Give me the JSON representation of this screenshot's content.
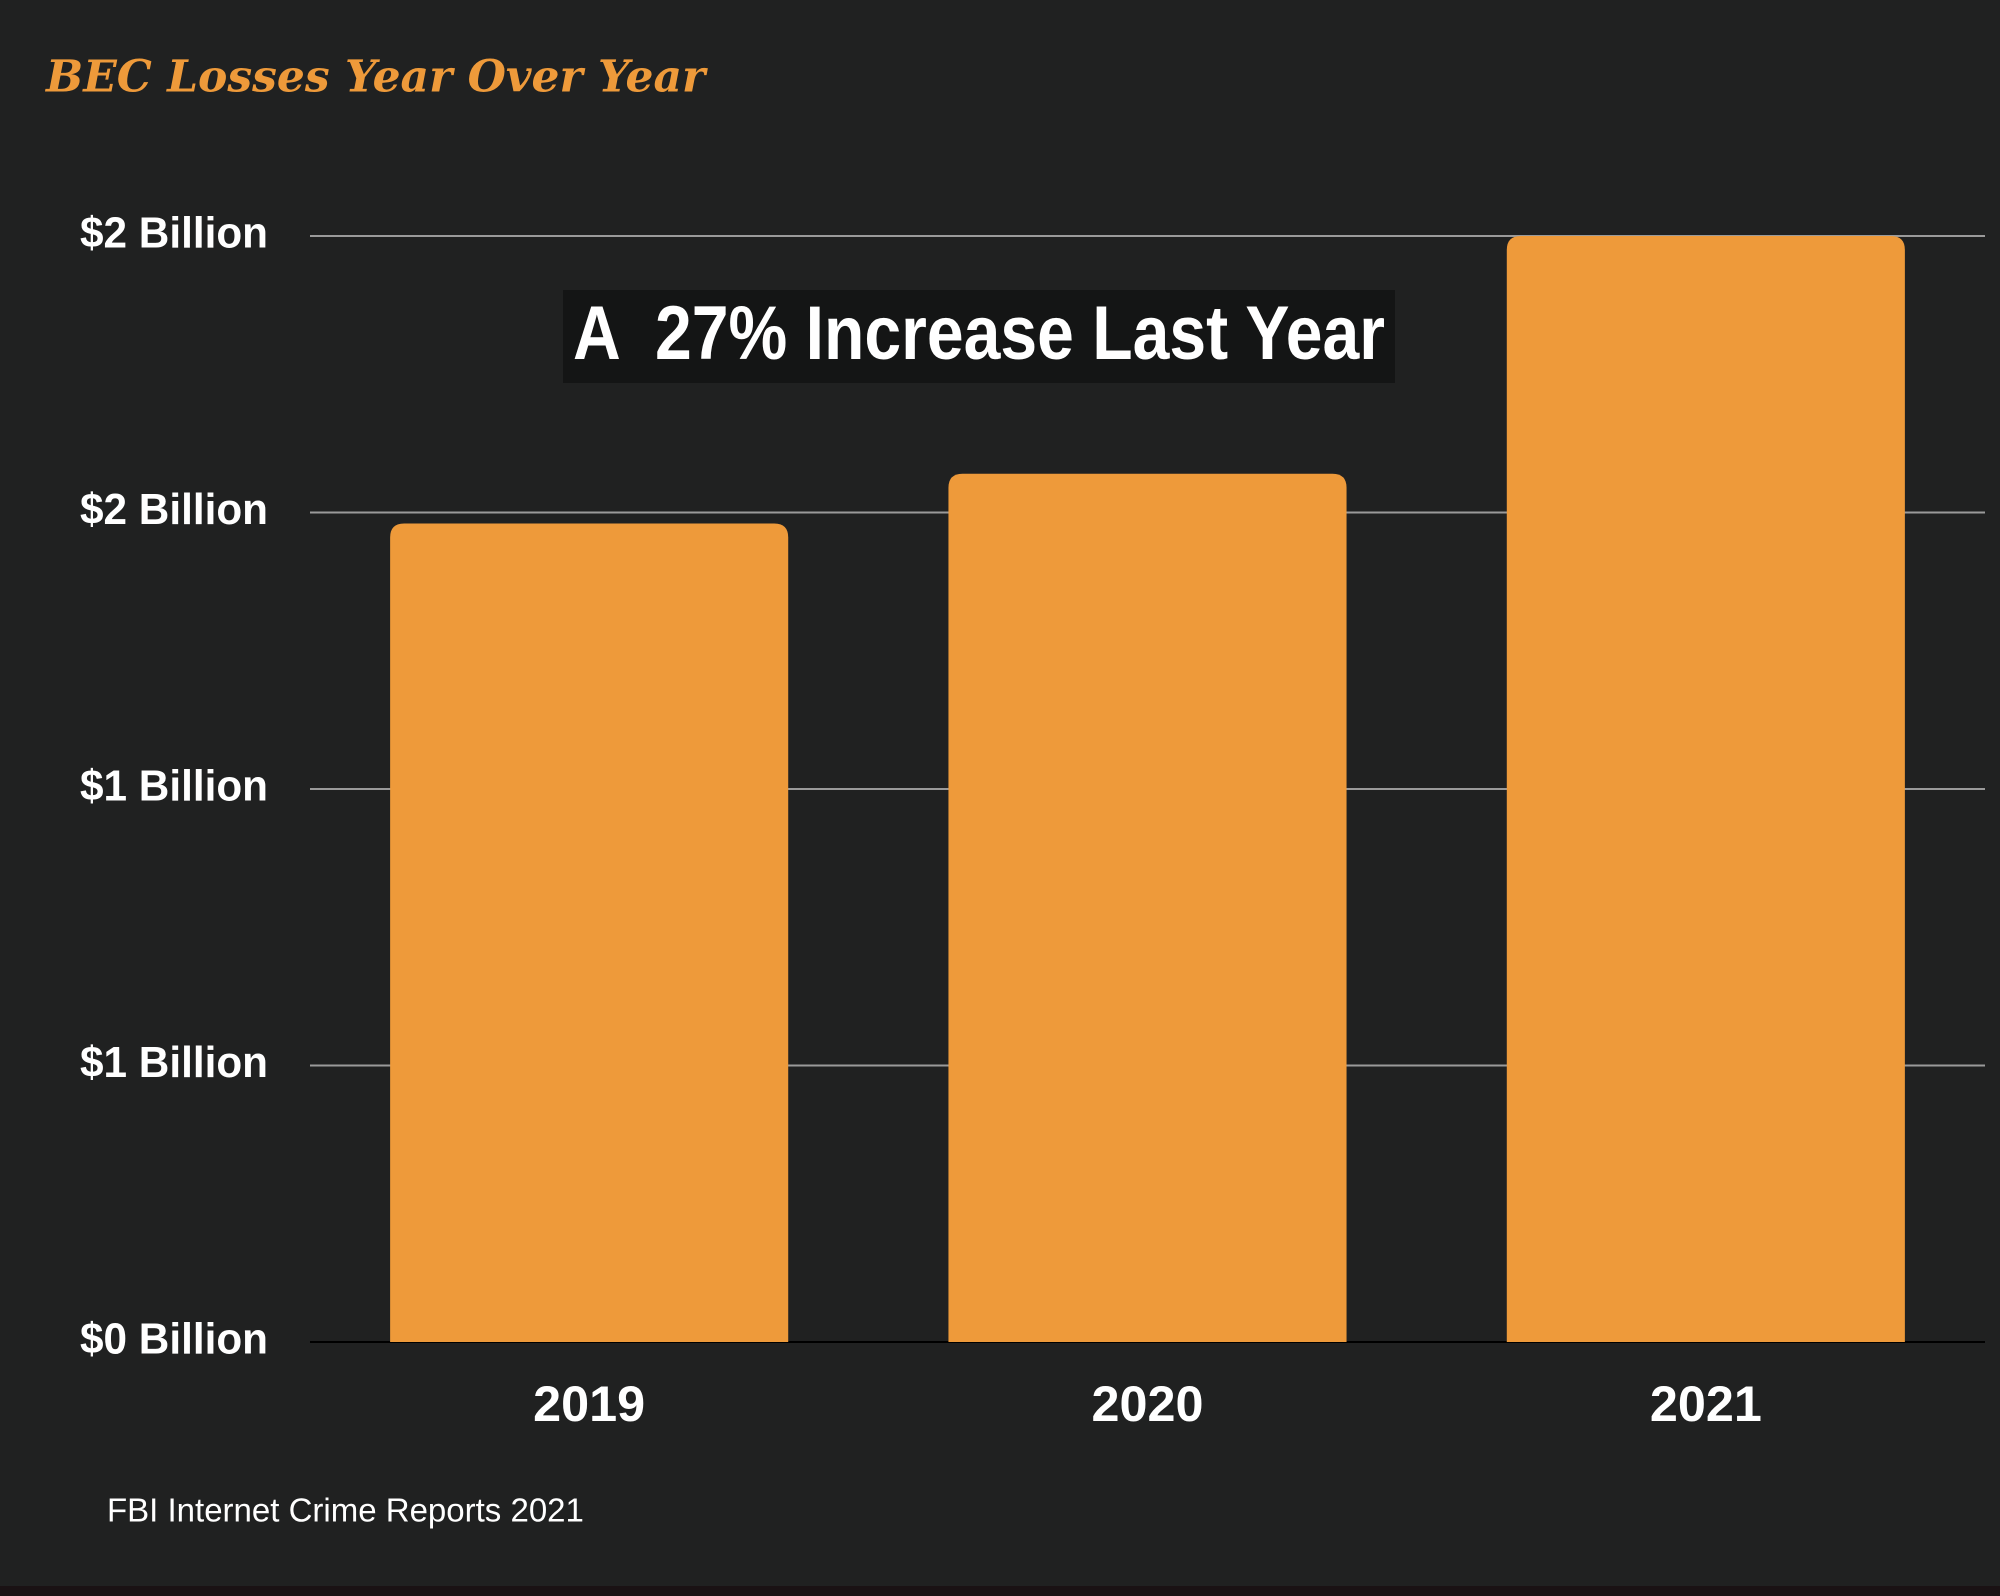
{
  "chart_data": {
    "type": "bar",
    "title": "BEC Losses Year Over Year",
    "annotation": "A  27% Increase Last Year",
    "source": "FBI Internet Crime Reports 2021",
    "categories": [
      "2019",
      "2020",
      "2021"
    ],
    "values": [
      1.48,
      1.57,
      2.0
    ],
    "color": "#ee9a3a",
    "ylim": [
      0,
      2
    ],
    "yticks": [
      {
        "value": 0,
        "label": "$0 Billion"
      },
      {
        "value": 0.5,
        "label": "$1 Billion"
      },
      {
        "value": 1,
        "label": "$1 Billion"
      },
      {
        "value": 1.5,
        "label": "$2 Billion"
      },
      {
        "value": 2,
        "label": "$2 Billion"
      }
    ],
    "grid": true
  }
}
